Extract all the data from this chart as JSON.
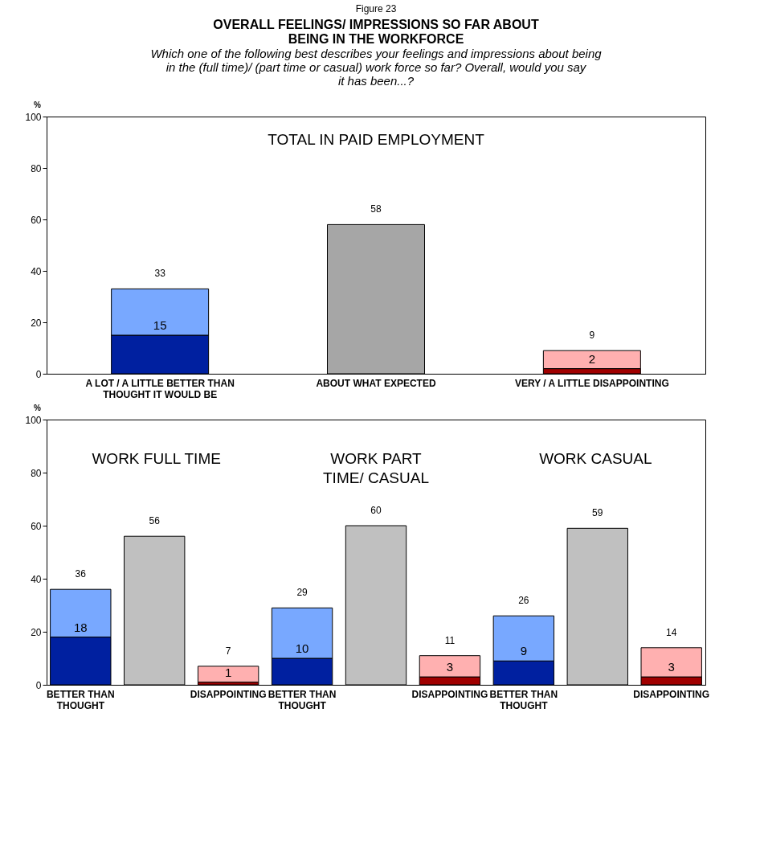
{
  "chart_data": [
    {
      "type": "bar",
      "title": "OVERALL FEELINGS/ IMPRESSIONS SO FAR ABOUT BEING IN THE WORKFORCE",
      "subtitle": "Which one of the following best describes your feelings and impressions about being in the (full time)/ (part time or casual)  work force so far?  Overall, would you say it has been...?",
      "annotations": [
        "Figure 23",
        "TOTAL IN PAID EMPLOYMENT"
      ],
      "ylabel": "%",
      "categories": [
        "A LOT / A LITTLE BETTER THAN THOUGHT IT WOULD BE",
        "ABOUT WHAT EXPECTED",
        "VERY / A LITTLE DISAPPOINTING"
      ],
      "stacked": true,
      "ylim": [
        0,
        100
      ],
      "yticks": [
        0,
        20,
        40,
        60,
        80,
        100
      ],
      "grid": false,
      "legend": false,
      "series": [
        {
          "color": "#0020a0",
          "values": [
            15,
            null,
            null
          ],
          "value_labels": [
            "15",
            null,
            null
          ]
        },
        {
          "color": "#78a8ff",
          "values": [
            18,
            null,
            null
          ]
        },
        {
          "color": "#a6a6a6",
          "values": [
            null,
            58,
            null
          ]
        },
        {
          "color": "#a00000",
          "values": [
            null,
            null,
            2
          ],
          "value_labels": [
            null,
            null,
            "2"
          ]
        },
        {
          "color": "#ffb0b0",
          "values": [
            null,
            null,
            7
          ]
        }
      ],
      "totals": [
        "33",
        "58",
        "9"
      ]
    },
    {
      "type": "bar",
      "annotations": [
        "WORK FULL TIME",
        "WORK PART TIME/ CASUAL",
        "WORK CASUAL"
      ],
      "ylabel": "%",
      "categories": [
        "BETTER THAN THOUGHT",
        null,
        "DISAPPOINTING",
        "BETTER THAN THOUGHT",
        null,
        "DISAPPOINTING",
        "BETTER THAN THOUGHT",
        null,
        "DISAPPOINTING"
      ],
      "stacked": true,
      "ylim": [
        0,
        100
      ],
      "yticks": [
        0,
        20,
        40,
        60,
        80,
        100
      ],
      "grid": false,
      "legend": false,
      "series": [
        {
          "color": "#0020a0",
          "values": [
            18,
            null,
            null,
            10,
            null,
            null,
            9,
            null,
            null
          ],
          "value_labels": [
            "18",
            null,
            null,
            "10",
            null,
            null,
            "9",
            null,
            null
          ]
        },
        {
          "color": "#78a8ff",
          "values": [
            18,
            null,
            null,
            19,
            null,
            null,
            17,
            null,
            null
          ]
        },
        {
          "color": "#c0c0c0",
          "values": [
            null,
            56,
            null,
            null,
            60,
            null,
            null,
            59,
            null
          ]
        },
        {
          "color": "#a00000",
          "values": [
            null,
            null,
            1,
            null,
            null,
            3,
            null,
            null,
            3
          ],
          "value_labels": [
            null,
            null,
            "1",
            null,
            null,
            "3",
            null,
            null,
            "3"
          ]
        },
        {
          "color": "#ffb0b0",
          "values": [
            null,
            null,
            6,
            null,
            null,
            8,
            null,
            null,
            11
          ]
        }
      ],
      "totals": [
        "36",
        "56",
        "7",
        "29",
        "60",
        "11",
        "26",
        "59",
        "14"
      ]
    }
  ]
}
